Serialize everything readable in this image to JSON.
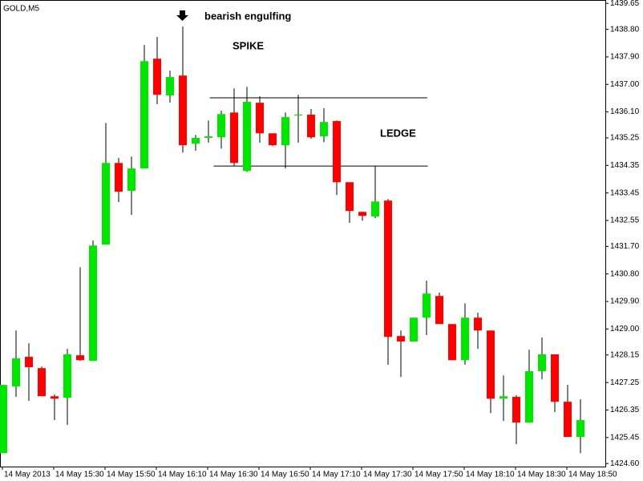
{
  "chart_data": {
    "type": "candlestick",
    "title": "GOLD,M5",
    "categories": [
      "14 May 2013",
      null,
      null,
      null,
      "14 May 15:30",
      null,
      null,
      null,
      "14 May 15:50",
      null,
      null,
      null,
      "14 May 16:10",
      null,
      null,
      null,
      "14 May 16:30",
      null,
      null,
      null,
      "14 May 16:50",
      null,
      null,
      null,
      "14 May 17:10",
      null,
      null,
      null,
      "14 May 17:30",
      null,
      null,
      null,
      "14 May 17:50",
      null,
      null,
      null,
      "14 May 18:10",
      null,
      null,
      null,
      "14 May 18:30",
      null,
      null,
      null,
      "14 May 18:50",
      null
    ],
    "open": [
      1424.94,
      1427.12,
      1428.09,
      1427.72,
      1426.8,
      1426.75,
      1428.14,
      1427.96,
      1431.76,
      1434.43,
      1433.52,
      1434.25,
      1437.84,
      1436.64,
      1437.29,
      1435.06,
      1435.25,
      1435.27,
      1436.08,
      1434.17,
      1436.4,
      1435.4,
      1435.01,
      1435.98,
      1436.01,
      1435.3,
      1435.8,
      1433.8,
      1432.83,
      1432.68,
      1433.2,
      1428.77,
      1428.59,
      1429.37,
      1430.08,
      1429.16,
      1427.98,
      1429.37,
      1428.95,
      1426.72,
      1426.78,
      1425.94,
      1427.62,
      1428.17,
      1426.62,
      1425.47
    ],
    "high": [
      1427.17,
      1428.95,
      1428.53,
      1427.77,
      1426.86,
      1428.35,
      1431.02,
      1431.89,
      1435.74,
      1434.59,
      1434.64,
      1438.29,
      1438.55,
      1437.45,
      1438.89,
      1435.35,
      1435.82,
      1436.14,
      1436.87,
      1436.92,
      1436.61,
      1435.4,
      1436.08,
      1436.66,
      1436.19,
      1436.22,
      1435.82,
      1433.8,
      1432.83,
      1434.33,
      1433.25,
      1428.95,
      1429.37,
      1430.58,
      1430.19,
      1429.16,
      1429.84,
      1429.53,
      1428.95,
      1427.48,
      1426.83,
      1428.32,
      1428.72,
      1428.17,
      1427.17,
      1426.7
    ],
    "low": [
      1424.94,
      1426.78,
      1426.65,
      1426.8,
      1426.02,
      1425.86,
      1427.96,
      1427.96,
      1431.76,
      1433.15,
      1432.73,
      1434.25,
      1436.35,
      1436.4,
      1434.77,
      1434.83,
      1435.09,
      1434.9,
      1434.33,
      1434.14,
      1435.09,
      1434.98,
      1434.25,
      1435.09,
      1435.22,
      1435.11,
      1433.38,
      1432.47,
      1432.54,
      1432.62,
      1427.83,
      1427.43,
      1428.59,
      1428.8,
      1429.16,
      1427.98,
      1427.83,
      1428.35,
      1426.25,
      1425.99,
      1425.23,
      1425.94,
      1427.35,
      1426.28,
      1425.47,
      1424.94
    ],
    "close": [
      1427.17,
      1428.04,
      1427.75,
      1426.8,
      1426.72,
      1428.17,
      1427.98,
      1431.73,
      1434.43,
      1433.49,
      1434.25,
      1437.76,
      1436.66,
      1437.24,
      1435.01,
      1435.25,
      1435.3,
      1436.03,
      1434.43,
      1436.43,
      1435.4,
      1435.01,
      1435.93,
      1436.01,
      1435.27,
      1435.77,
      1433.8,
      1432.86,
      1432.7,
      1433.17,
      1428.74,
      1428.59,
      1429.37,
      1430.16,
      1429.16,
      1427.98,
      1429.37,
      1428.95,
      1426.72,
      1426.8,
      1425.94,
      1427.62,
      1428.17,
      1426.62,
      1425.47,
      1426.02
    ],
    "up_color": "#00e600",
    "down_color": "#ff0000",
    "ylim": [
      1424.5,
      1439.76
    ],
    "yticks": [
      1439.65,
      {
        "value": 1438.8,
        "label": "1438.80"
      },
      {
        "value": 1437.9,
        "label": "1437.90"
      },
      {
        "value": 1437,
        "label": "1437.00"
      },
      {
        "value": 1436.1,
        "label": "1436.10"
      },
      1435.25,
      1434.35,
      1433.45,
      1432.55,
      {
        "value": 1431.7,
        "label": "1431.70"
      },
      {
        "value": 1430.8,
        "label": "1430.80"
      },
      {
        "value": 1429.9,
        "label": "1429.90"
      },
      {
        "value": 1429,
        "label": "1429.00"
      },
      1428.15,
      1427.25,
      1426.35,
      1425.45,
      {
        "value": 1424.6,
        "label": "1424.60"
      }
    ],
    "grid": false,
    "annotations": [
      "bearish engulfing",
      "SPIKE",
      "LEDGE"
    ],
    "hlines": [
      {
        "value": 1436.56,
        "from": 16.1,
        "to": 33.06
      },
      {
        "value": 1434.33,
        "from": 16.4,
        "to": 33.1
      }
    ]
  }
}
